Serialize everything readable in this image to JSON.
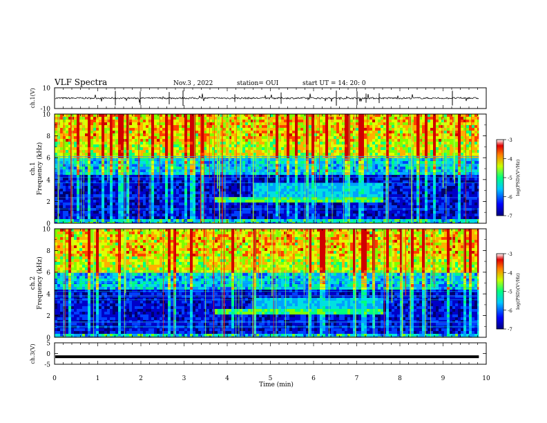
{
  "header": {
    "title": "VLF Spectra",
    "date": "Nov.3 , 2022",
    "station": "station= OUI",
    "start": "start UT = 14: 20: 0"
  },
  "chart_data": [
    {
      "type": "line",
      "panel": "ch1-waveform",
      "ylabel": "ch.1(V)",
      "ylim": [
        -10,
        10
      ],
      "yticks": [
        "10",
        "-10"
      ],
      "xlim": [
        0,
        9.83
      ],
      "baseline": 0,
      "color": "#000000"
    },
    {
      "type": "heatmap",
      "panel": "ch1-spectrogram",
      "ylabel": "Frequency (kHz)",
      "channel": "ch.1",
      "ylim": [
        0,
        10
      ],
      "yticks": [
        "0",
        "2",
        "4",
        "6",
        "8",
        "10"
      ],
      "xlim": [
        0,
        9.83
      ],
      "colorbar": {
        "label": "log(PSD)(V²/Hz)",
        "range": [
          -7,
          -3
        ],
        "ticks": [
          "-3",
          "-4",
          "-5",
          "-6",
          "-7"
        ]
      },
      "features": {
        "emission_band_khz": [
          1.8,
          2.4
        ],
        "emission_minutes": [
          3.7,
          7.6
        ]
      }
    },
    {
      "type": "heatmap",
      "panel": "ch2-spectrogram",
      "ylabel": "Frequency (kHz)",
      "channel": "ch.2",
      "ylim": [
        0,
        10
      ],
      "yticks": [
        "0",
        "2",
        "4",
        "6",
        "8",
        "10"
      ],
      "xlim": [
        0,
        9.83
      ],
      "colorbar": {
        "label": "log(PSD)(V²/Hz)",
        "range": [
          -7,
          -3
        ],
        "ticks": [
          "-3",
          "-4",
          "-5",
          "-6",
          "-7"
        ]
      },
      "features": {
        "emission_band_khz": [
          2.0,
          2.5
        ],
        "emission_minutes": [
          3.7,
          7.6
        ]
      }
    },
    {
      "type": "line",
      "panel": "ch3-signal",
      "ylabel": "ch.3(V)",
      "ylim": [
        -5,
        5
      ],
      "yticks": [
        "5",
        "0",
        "-5"
      ],
      "xlim": [
        0,
        9.83
      ],
      "value": -1.5,
      "color": "#000000",
      "xlabel": "Time (min)",
      "xticks": [
        "0",
        "1",
        "2",
        "3",
        "4",
        "5",
        "6",
        "7",
        "8",
        "9",
        "10"
      ],
      "xaxis_range": [
        0,
        10
      ]
    }
  ]
}
